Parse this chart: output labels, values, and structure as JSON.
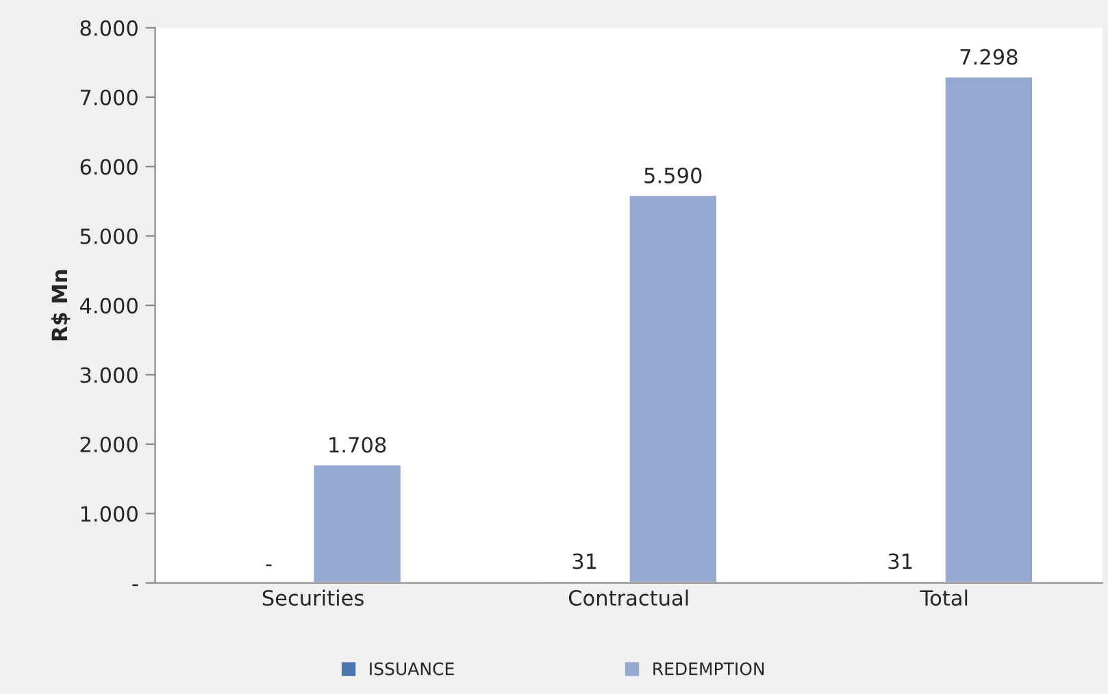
{
  "chart_data": {
    "type": "bar",
    "ylabel": "R$ Mn",
    "categories": [
      "Securities",
      "Contractual",
      "Total"
    ],
    "series": [
      {
        "name": "ISSUANCE",
        "color": "#4a76b0",
        "values": [
          null,
          31,
          31
        ],
        "value_labels": [
          "-",
          "31",
          "31"
        ]
      },
      {
        "name": "REDEMPTION",
        "color": "#95a9d1",
        "values": [
          1708,
          5590,
          7298
        ],
        "value_labels": [
          "1.708",
          "5.590",
          "7.298"
        ]
      }
    ],
    "ylim": [
      0,
      8000
    ],
    "yticks": [
      {
        "value": 0,
        "label": "-"
      },
      {
        "value": 1000,
        "label": "1.000"
      },
      {
        "value": 2000,
        "label": "2.000"
      },
      {
        "value": 3000,
        "label": "3.000"
      },
      {
        "value": 4000,
        "label": "4.000"
      },
      {
        "value": 5000,
        "label": "5.000"
      },
      {
        "value": 6000,
        "label": "6.000"
      },
      {
        "value": 7000,
        "label": "7.000"
      },
      {
        "value": 8000,
        "label": "8.000"
      }
    ],
    "grid": false,
    "legend": "bottom"
  }
}
